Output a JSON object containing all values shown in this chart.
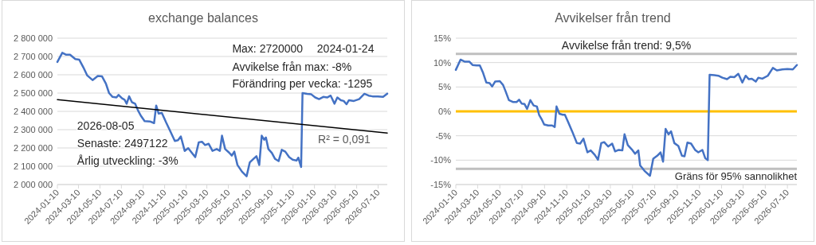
{
  "chart_data": [
    {
      "type": "line",
      "title": "exchange balances",
      "xlim": [
        "2024-01-10",
        "2026-08-05"
      ],
      "xticks": [
        "2024-01-10",
        "2024-03-10",
        "2024-05-10",
        "2024-07-10",
        "2024-09-10",
        "2024-11-10",
        "2025-01-10",
        "2025-03-10",
        "2025-05-10",
        "2025-07-10",
        "2025-09-10",
        "2025-11-10",
        "2026-01-10",
        "2026-03-10",
        "2026-05-10",
        "2026-07-10"
      ],
      "ylim": [
        2000000,
        2800000
      ],
      "yticks": [
        {
          "value": 2000000,
          "label": "2 000 000"
        },
        {
          "value": 2100000,
          "label": "2 100 000"
        },
        {
          "value": 2200000,
          "label": "2 200 000"
        },
        {
          "value": 2300000,
          "label": "2 300 000"
        },
        {
          "value": 2400000,
          "label": "2 400 000"
        },
        {
          "value": 2500000,
          "label": "2 500 000"
        },
        {
          "value": 2600000,
          "label": "2 600 000"
        },
        {
          "value": 2700000,
          "label": "2 700 000"
        },
        {
          "value": 2800000,
          "label": "2 800 000"
        }
      ],
      "grid": "y",
      "marker": "none",
      "line_style": "solid",
      "series": [
        {
          "color": "#4472c4",
          "x": [
            "2024-01-10",
            "2024-01-24",
            "2024-02-03",
            "2024-02-15",
            "2024-03-01",
            "2024-03-12",
            "2024-03-24",
            "2024-04-04",
            "2024-04-19",
            "2024-05-04",
            "2024-05-16",
            "2024-05-27",
            "2024-06-05",
            "2024-06-15",
            "2024-06-26",
            "2024-07-02",
            "2024-07-12",
            "2024-07-19",
            "2024-07-25",
            "2024-08-01",
            "2024-08-09",
            "2024-08-18",
            "2024-08-26",
            "2024-09-03",
            "2024-09-14",
            "2024-09-29",
            "2024-10-11",
            "2024-10-17",
            "2024-10-24",
            "2024-11-02",
            "2024-11-14",
            "2024-11-25",
            "2024-12-09",
            "2024-12-18",
            "2024-12-26",
            "2025-01-06",
            "2025-01-16",
            "2025-01-27",
            "2025-02-05",
            "2025-02-15",
            "2025-02-24",
            "2025-03-05",
            "2025-03-15",
            "2025-03-26",
            "2025-04-07",
            "2025-04-16",
            "2025-04-22",
            "2025-05-01",
            "2025-05-12",
            "2025-05-20",
            "2025-05-27",
            "2025-06-05",
            "2025-06-18",
            "2025-07-01",
            "2025-07-10",
            "2025-07-22",
            "2025-07-29",
            "2025-08-06",
            "2025-08-13",
            "2025-08-20",
            "2025-08-25",
            "2025-09-01",
            "2025-09-11",
            "2025-09-20",
            "2025-09-30",
            "2025-10-09",
            "2025-10-19",
            "2025-10-30",
            "2025-11-09",
            "2025-11-20",
            "2025-11-25",
            "2025-12-03",
            "2025-12-07",
            "2025-12-20",
            "2026-01-01",
            "2026-01-12",
            "2026-01-23",
            "2026-02-04",
            "2026-02-15",
            "2026-02-25",
            "2026-03-08",
            "2026-03-16",
            "2026-03-26",
            "2026-04-03",
            "2026-04-11",
            "2026-04-18",
            "2026-05-02",
            "2026-05-17",
            "2026-06-01",
            "2026-06-13",
            "2026-06-24",
            "2026-07-09",
            "2026-07-24",
            "2026-08-05"
          ],
          "values": [
            2670000,
            2720000,
            2710000,
            2710000,
            2686000,
            2683000,
            2640000,
            2596000,
            2571000,
            2593000,
            2591000,
            2552000,
            2500000,
            2479000,
            2476000,
            2490000,
            2471000,
            2464000,
            2442000,
            2482000,
            2450000,
            2442000,
            2406000,
            2377000,
            2347000,
            2345000,
            2336000,
            2432000,
            2388000,
            2391000,
            2340000,
            2296000,
            2238000,
            2242000,
            2263000,
            2184000,
            2199000,
            2172000,
            2150000,
            2231000,
            2234000,
            2216000,
            2223000,
            2184000,
            2194000,
            2184000,
            2267000,
            2194000,
            2175000,
            2158000,
            2180000,
            2107000,
            2070000,
            2045000,
            2121000,
            2143000,
            2155000,
            2107000,
            2267000,
            2245000,
            2257000,
            2194000,
            2172000,
            2140000,
            2128000,
            2190000,
            2180000,
            2150000,
            2136000,
            2131000,
            2147000,
            2096000,
            2500000,
            2496000,
            2493000,
            2476000,
            2467000,
            2479000,
            2476000,
            2486000,
            2442000,
            2476000,
            2461000,
            2457000,
            2439000,
            2461000,
            2457000,
            2467000,
            2496000,
            2486000,
            2482000,
            2482000,
            2479000,
            2497000
          ]
        },
        {
          "color": "#000000",
          "x": [
            "2024-01-10",
            "2026-08-05"
          ],
          "values": [
            2464000,
            2282000
          ]
        }
      ],
      "annotations": [
        "Max: 2720000",
        "2024-01-24",
        "Avvikelse från max: -8%",
        "Förändring per vecka: -1295",
        "2026-08-05",
        "Senaste: 2497122",
        "Årlig utveckling: -3%",
        "R² = 0,091"
      ]
    },
    {
      "type": "line",
      "title": "Avvikelser från trend",
      "xlim": [
        "2024-01-10",
        "2026-08-05"
      ],
      "xticks": [
        "2024-01-10",
        "2024-03-10",
        "2024-05-10",
        "2024-07-10",
        "2024-09-10",
        "2024-11-10",
        "2025-01-10",
        "2025-03-10",
        "2025-05-10",
        "2025-07-10",
        "2025-09-10",
        "2025-11-10",
        "2026-01-10",
        "2026-03-10",
        "2026-05-10",
        "2026-07-10"
      ],
      "ylim": [
        -15,
        15
      ],
      "yticks": [
        {
          "value": -15,
          "label": "-15%"
        },
        {
          "value": -10,
          "label": "-10%"
        },
        {
          "value": -5,
          "label": "-5%"
        },
        {
          "value": 0,
          "label": "0%"
        },
        {
          "value": 5,
          "label": "5%"
        },
        {
          "value": 10,
          "label": "10%"
        },
        {
          "value": 15,
          "label": "15%"
        }
      ],
      "grid": "y",
      "marker": "none",
      "line_style": "solid",
      "series": [
        {
          "color": "#4472c4",
          "x": [
            "2024-01-10",
            "2024-01-23",
            "2024-02-03",
            "2024-02-16",
            "2024-02-25",
            "2024-03-07",
            "2024-03-16",
            "2024-03-25",
            "2024-04-03",
            "2024-04-12",
            "2024-04-19",
            "2024-04-27",
            "2024-05-10",
            "2024-05-19",
            "2024-05-26",
            "2024-06-04",
            "2024-06-16",
            "2024-06-25",
            "2024-07-02",
            "2024-07-09",
            "2024-07-17",
            "2024-07-24",
            "2024-08-02",
            "2024-08-11",
            "2024-08-20",
            "2024-08-26",
            "2024-09-02",
            "2024-09-09",
            "2024-09-20",
            "2024-10-01",
            "2024-10-08",
            "2024-10-13",
            "2024-10-21",
            "2024-10-30",
            "2024-11-05",
            "2024-11-14",
            "2024-11-25",
            "2024-12-08",
            "2024-12-17",
            "2024-12-26",
            "2025-01-06",
            "2025-01-15",
            "2025-01-26",
            "2025-02-04",
            "2025-02-13",
            "2025-02-21",
            "2025-03-04",
            "2025-03-15",
            "2025-03-23",
            "2025-04-02",
            "2025-04-12",
            "2025-04-18",
            "2025-04-27",
            "2025-05-08",
            "2025-05-17",
            "2025-05-26",
            "2025-05-31",
            "2025-06-12",
            "2025-06-27",
            "2025-07-06",
            "2025-07-17",
            "2025-07-26",
            "2025-08-02",
            "2025-08-09",
            "2025-08-17",
            "2025-08-24",
            "2025-09-02",
            "2025-09-13",
            "2025-09-23",
            "2025-09-30",
            "2025-10-08",
            "2025-10-18",
            "2025-10-29",
            "2025-11-07",
            "2025-11-18",
            "2025-11-26",
            "2025-12-03",
            "2025-12-08",
            "2025-12-21",
            "2026-01-01",
            "2026-01-12",
            "2026-01-25",
            "2026-02-03",
            "2026-02-14",
            "2026-02-25",
            "2026-03-08",
            "2026-03-17",
            "2026-03-26",
            "2026-04-03",
            "2026-04-14",
            "2026-04-21",
            "2026-05-02",
            "2026-05-17",
            "2026-05-31",
            "2026-06-11",
            "2026-06-26",
            "2026-07-10",
            "2026-07-25",
            "2026-08-05"
          ],
          "values": [
            8.5,
            10.6,
            10.2,
            10.2,
            9.5,
            9.4,
            9.4,
            7.9,
            5.9,
            5.8,
            5.1,
            6.1,
            6.2,
            5.4,
            4.1,
            2.3,
            1.9,
            1.9,
            2.4,
            1.6,
            1.5,
            0.5,
            2.3,
            1.2,
            1.0,
            -0.7,
            -1.6,
            -2.7,
            -2.9,
            -2.9,
            -3.2,
            1.0,
            -0.5,
            -0.7,
            -0.7,
            -2.2,
            -4.1,
            -6.5,
            -6.6,
            -5.6,
            -8.4,
            -8.0,
            -8.9,
            -9.9,
            -6.5,
            -6.3,
            -7.2,
            -6.6,
            -8.2,
            -7.9,
            -8.0,
            -4.7,
            -6.9,
            -7.8,
            -8.7,
            -8.0,
            -11.1,
            -12.2,
            -13.2,
            -9.7,
            -9.1,
            -8.4,
            -10.3,
            -3.6,
            -4.7,
            -4.1,
            -6.5,
            -7.1,
            -9.1,
            -9.2,
            -6.4,
            -6.6,
            -7.9,
            -8.4,
            -7.9,
            -9.6,
            -10.0,
            7.5,
            7.4,
            7.3,
            6.9,
            6.6,
            7.1,
            7.0,
            7.7,
            5.9,
            7.3,
            6.6,
            6.7,
            6.1,
            6.9,
            6.7,
            7.3,
            8.9,
            8.4,
            8.6,
            8.7,
            8.6,
            9.5
          ]
        }
      ],
      "ref_lines": [
        {
          "axis": "y",
          "value": 0,
          "color": "#ffc000"
        },
        {
          "axis": "y",
          "value": 11.8,
          "color": "#bfbfbf"
        },
        {
          "axis": "y",
          "value": -11.8,
          "color": "#bfbfbf",
          "label": "Gräns för 95% sannolikhet"
        }
      ],
      "annotations": [
        "Avvikelse från trend: 9,5%"
      ]
    }
  ]
}
